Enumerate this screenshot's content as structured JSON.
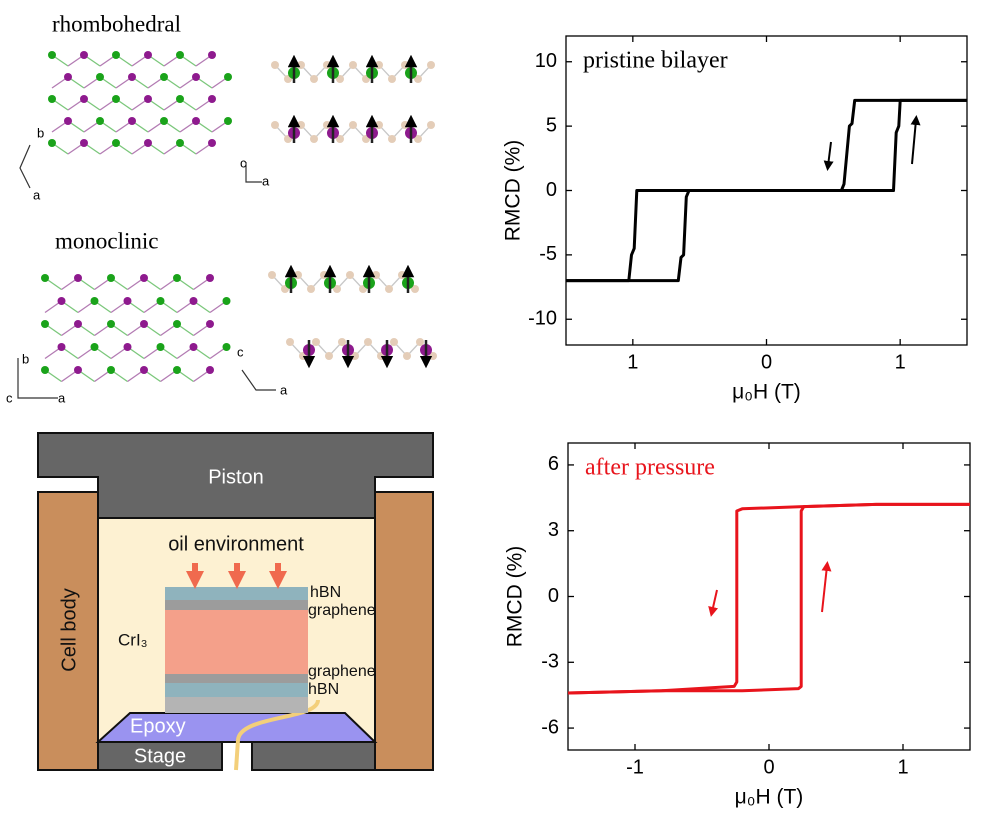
{
  "structures": {
    "top_title": "rhombohedral",
    "top_axes_left": [
      "b",
      "a"
    ],
    "top_axes_right": [
      "c",
      "a"
    ],
    "bottom_title": "monoclinic",
    "bottom_axes_left": [
      "b",
      "c",
      "a"
    ],
    "bottom_axes_right": [
      "c",
      "a"
    ]
  },
  "cell": {
    "piston": "Piston",
    "body": "Cell body",
    "medium": "oil environment",
    "sample": "CrI₃",
    "layers": [
      "hBN",
      "graphene",
      "graphene",
      "hBN"
    ],
    "epoxy": "Epoxy",
    "stage": "Stage"
  },
  "chart_data": [
    {
      "type": "line",
      "title": "pristine bilayer",
      "title_color": "#000000",
      "x_label": "μ₀H (T)",
      "y_label": "RMCD (%)",
      "xlim": [
        -1.5,
        1.5
      ],
      "ylim": [
        -12,
        12
      ],
      "xticks": [
        {
          "value": -1,
          "label": "1"
        },
        0,
        {
          "value": 1,
          "label": "1"
        }
      ],
      "yticks": [
        -10,
        -5,
        0,
        5,
        10
      ],
      "series": [
        {
          "color": "#000000",
          "x": [
            1.5,
            0.66,
            0.64,
            0.62,
            0.58,
            0.56,
            -0.97,
            -0.99,
            -1.01,
            -1.03,
            -1.5
          ],
          "values": [
            7,
            7,
            5.2,
            5,
            0.5,
            0,
            0,
            -4.5,
            -5,
            -7,
            -7
          ]
        },
        {
          "color": "#000000",
          "x": [
            -1.5,
            -0.66,
            -0.64,
            -0.62,
            -0.6,
            -0.58,
            0.95,
            0.97,
            0.99,
            1.0,
            1.5
          ],
          "values": [
            -7,
            -7,
            -5.2,
            -5,
            -0.5,
            0,
            0,
            4.5,
            5,
            7,
            7
          ]
        }
      ]
    },
    {
      "type": "line",
      "title": "after pressure",
      "title_color": "#e8141c",
      "x_label": "μ₀H (T)",
      "y_label": "RMCD (%)",
      "xlim": [
        -1.5,
        1.5
      ],
      "ylim": [
        -7,
        7
      ],
      "xticks": [
        -1,
        0,
        1
      ],
      "yticks": [
        -6,
        -3,
        0,
        3,
        6
      ],
      "series": [
        {
          "color": "#e8141c",
          "x": [
            1.5,
            0.8,
            0.25,
            -0.2,
            -0.24,
            -0.24,
            -0.24,
            -0.26,
            -0.8,
            -1.5
          ],
          "values": [
            4.2,
            4.2,
            4.1,
            4.0,
            3.9,
            0,
            -3.9,
            -4.1,
            -4.3,
            -4.4
          ]
        },
        {
          "color": "#e8141c",
          "x": [
            -1.5,
            -0.8,
            -0.2,
            0.22,
            0.24,
            0.24,
            0.24,
            0.26,
            0.8,
            1.5
          ],
          "values": [
            -4.4,
            -4.3,
            -4.3,
            -4.2,
            -4.1,
            0,
            3.9,
            4.1,
            4.2,
            4.2
          ]
        }
      ]
    }
  ]
}
